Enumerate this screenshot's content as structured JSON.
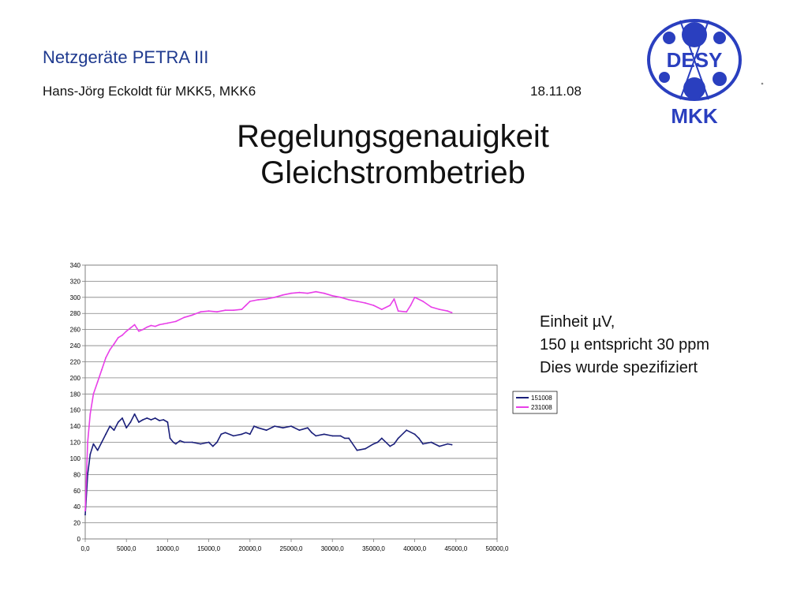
{
  "header": {
    "title": "Netzgeräte PETRA III",
    "subtitle": "Hans-Jörg Eckoldt für MKK5, MKK6",
    "date": "18.11.08"
  },
  "logo": {
    "top_text": "DESY",
    "bottom_text": "MKK",
    "color": "#2a3fbf"
  },
  "slide": {
    "title_line1": "Regelungsgenauigkeit",
    "title_line2": "Gleichstrombetrieb"
  },
  "notes": [
    "Einheit µV,",
    "150 µ  entspricht 30 ppm",
    "Dies wurde spezifiziert"
  ],
  "chart_data": {
    "type": "line",
    "title": "",
    "xlabel": "",
    "ylabel": "",
    "xlim": [
      0,
      50000
    ],
    "ylim": [
      0,
      340
    ],
    "x_ticks": [
      0,
      5000,
      10000,
      15000,
      20000,
      25000,
      30000,
      35000,
      40000,
      45000,
      50000
    ],
    "x_tick_labels": [
      "0,0",
      "5000,0",
      "10000,0",
      "15000,0",
      "20000,0",
      "25000,0",
      "30000,0",
      "35000,0",
      "40000,0",
      "45000,0",
      "50000,0"
    ],
    "y_ticks": [
      0,
      20,
      40,
      60,
      80,
      100,
      120,
      140,
      160,
      180,
      200,
      220,
      240,
      260,
      280,
      300,
      320,
      340
    ],
    "grid": "horizontal",
    "legend": "right",
    "series": [
      {
        "name": "151008",
        "color": "#1a1f7a",
        "x": [
          0,
          300,
          600,
          1000,
          1500,
          2000,
          2500,
          3000,
          3500,
          4000,
          4500,
          5000,
          5500,
          6000,
          6500,
          7000,
          7500,
          8000,
          8500,
          9000,
          9500,
          10000,
          10300,
          10700,
          11000,
          11500,
          12000,
          13000,
          14000,
          15000,
          15500,
          16000,
          16500,
          17000,
          18000,
          19000,
          19500,
          20000,
          20500,
          21000,
          22000,
          23000,
          24000,
          25000,
          26000,
          27000,
          27500,
          28000,
          29000,
          30000,
          31000,
          31500,
          32000,
          33000,
          34000,
          35000,
          35500,
          36000,
          37000,
          37500,
          38000,
          39000,
          40000,
          40500,
          41000,
          42000,
          43000,
          44000,
          44500
        ],
        "values": [
          30,
          80,
          105,
          118,
          110,
          120,
          130,
          140,
          135,
          145,
          150,
          138,
          145,
          155,
          145,
          148,
          150,
          148,
          150,
          147,
          148,
          145,
          125,
          120,
          118,
          122,
          120,
          120,
          118,
          120,
          115,
          120,
          130,
          132,
          128,
          130,
          132,
          130,
          140,
          138,
          135,
          140,
          138,
          140,
          135,
          138,
          132,
          128,
          130,
          128,
          128,
          125,
          125,
          110,
          112,
          118,
          120,
          125,
          115,
          118,
          125,
          135,
          130,
          125,
          118,
          120,
          115,
          118,
          117
        ]
      },
      {
        "name": "231008",
        "color": "#e83fe8",
        "x": [
          0,
          300,
          600,
          1000,
          1500,
          2000,
          2500,
          3000,
          3500,
          4000,
          4500,
          5000,
          5500,
          6000,
          6500,
          7000,
          7500,
          8000,
          8500,
          9000,
          9500,
          10000,
          11000,
          12000,
          13000,
          14000,
          15000,
          16000,
          17000,
          18000,
          19000,
          19500,
          20000,
          21000,
          22000,
          23000,
          24000,
          25000,
          26000,
          27000,
          28000,
          29000,
          30000,
          31000,
          32000,
          33000,
          34000,
          35000,
          36000,
          37000,
          37500,
          38000,
          39000,
          39500,
          40000,
          41000,
          42000,
          43000,
          44000,
          44500
        ],
        "values": [
          35,
          120,
          155,
          180,
          195,
          210,
          225,
          235,
          242,
          250,
          253,
          258,
          262,
          266,
          258,
          260,
          263,
          265,
          264,
          266,
          267,
          268,
          270,
          275,
          278,
          282,
          283,
          282,
          284,
          284,
          285,
          290,
          295,
          297,
          298,
          300,
          303,
          305,
          306,
          305,
          307,
          305,
          302,
          300,
          297,
          295,
          293,
          290,
          285,
          290,
          298,
          283,
          282,
          290,
          300,
          295,
          288,
          285,
          283,
          281
        ]
      }
    ]
  }
}
